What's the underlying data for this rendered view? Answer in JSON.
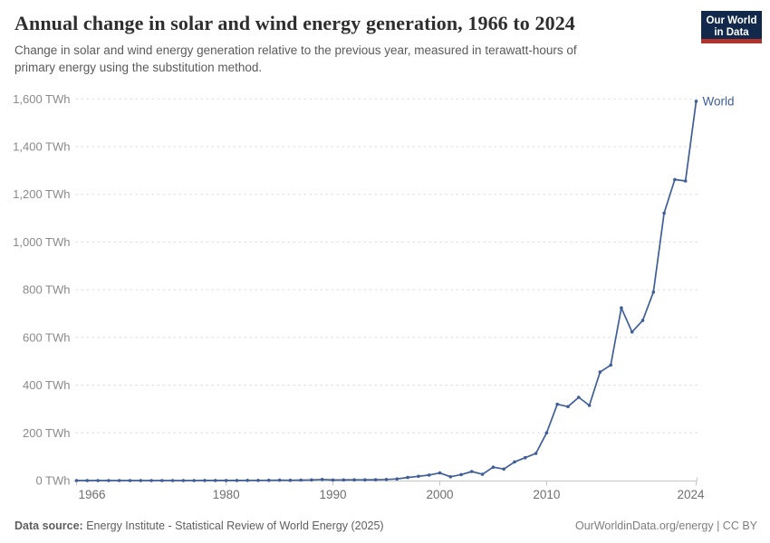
{
  "header": {
    "title": "Annual change in solar and wind energy generation, 1966 to 2024",
    "subtitle_line1": "Change in solar and wind energy generation relative to the previous year, measured in terawatt-hours of",
    "subtitle_line2": "primary energy using the substitution method.",
    "logo": {
      "line1": "Our World",
      "line2": "in Data",
      "bg_color": "#12294b",
      "accent_color": "#b0342c"
    }
  },
  "chart_data": {
    "type": "line",
    "title": "Annual change in solar and wind energy generation, 1966 to 2024",
    "xlabel": "",
    "ylabel": "",
    "unit": "TWh",
    "ylim": [
      0,
      1600
    ],
    "xlim": [
      1966,
      2024
    ],
    "grid": "horizontal-dashed",
    "legend_position": "end-of-line",
    "end_label": "World",
    "x": [
      1966,
      1967,
      1968,
      1969,
      1970,
      1971,
      1972,
      1973,
      1974,
      1975,
      1976,
      1977,
      1978,
      1979,
      1980,
      1981,
      1982,
      1983,
      1984,
      1985,
      1986,
      1987,
      1988,
      1989,
      1990,
      1991,
      1992,
      1993,
      1994,
      1995,
      1996,
      1997,
      1998,
      1999,
      2000,
      2001,
      2002,
      2003,
      2004,
      2005,
      2006,
      2007,
      2008,
      2009,
      2010,
      2011,
      2012,
      2013,
      2014,
      2015,
      2016,
      2017,
      2018,
      2019,
      2020,
      2021,
      2022,
      2023,
      2024
    ],
    "series": [
      {
        "name": "World",
        "color": "#3f5e99",
        "values": [
          0,
          0,
          0,
          0,
          0,
          0,
          0.1,
          0.1,
          0.1,
          0.1,
          0.1,
          0.1,
          0.2,
          0.2,
          0.3,
          0.4,
          0.6,
          0.9,
          1.2,
          1.6,
          1.2,
          1.8,
          2.8,
          4.6,
          2.2,
          2.6,
          3,
          3,
          3.5,
          4.5,
          7,
          13,
          18,
          23,
          32,
          16,
          25,
          38,
          26,
          56,
          48,
          78,
          96,
          114,
          200,
          320,
          310,
          349,
          315,
          455,
          484,
          724,
          623,
          671,
          790,
          1121,
          1262,
          1256,
          1590
        ]
      }
    ],
    "yticks": [
      {
        "v": 0,
        "label": "0 TWh"
      },
      {
        "v": 200,
        "label": "200 TWh"
      },
      {
        "v": 400,
        "label": "400 TWh"
      },
      {
        "v": 600,
        "label": "600 TWh"
      },
      {
        "v": 800,
        "label": "800 TWh"
      },
      {
        "v": 1000,
        "label": "1,000 TWh"
      },
      {
        "v": 1200,
        "label": "1,200 TWh"
      },
      {
        "v": 1400,
        "label": "1,400 TWh"
      },
      {
        "v": 1600,
        "label": "1,600 TWh"
      }
    ],
    "xticks": [
      {
        "v": 1966,
        "label": "1966"
      },
      {
        "v": 1980,
        "label": "1980"
      },
      {
        "v": 1990,
        "label": "1990"
      },
      {
        "v": 2000,
        "label": "2000"
      },
      {
        "v": 2010,
        "label": "2010"
      },
      {
        "v": 2024,
        "label": "2024"
      }
    ]
  },
  "footer": {
    "source_label": "Data source:",
    "source_text": " Energy Institute - Statistical Review of World Energy (2025)",
    "right_text": "OurWorldinData.org/energy | CC BY"
  }
}
